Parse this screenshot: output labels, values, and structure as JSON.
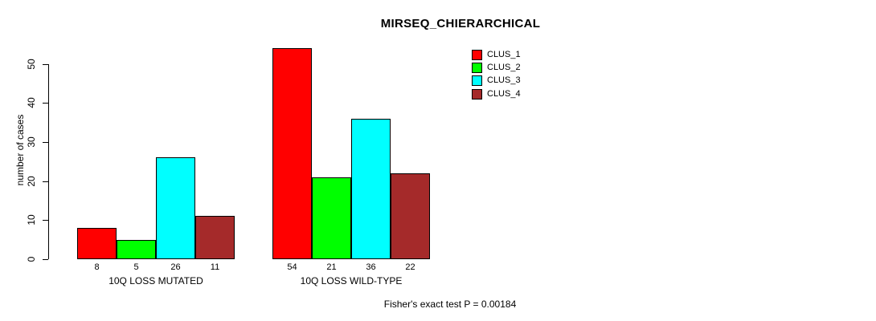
{
  "chart_data": {
    "type": "bar",
    "title": "MIRSEQ_CHIERARCHICAL",
    "xlabel": "",
    "ylabel": "number of cases",
    "categories": [
      "10Q LOSS MUTATED",
      "10Q LOSS WILD-TYPE"
    ],
    "series": [
      {
        "name": "CLUS_1",
        "color": "#FF0000",
        "values": [
          8,
          54
        ]
      },
      {
        "name": "CLUS_2",
        "color": "#00FF00",
        "values": [
          5,
          21
        ]
      },
      {
        "name": "CLUS_3",
        "color": "#00FFFF",
        "values": [
          26,
          36
        ]
      },
      {
        "name": "CLUS_4",
        "color": "#A52A2A",
        "values": [
          11,
          22
        ]
      }
    ],
    "bar_value_labels": [
      [
        8,
        5,
        26,
        11
      ],
      [
        54,
        21,
        36,
        22
      ]
    ],
    "yticks": [
      0,
      10,
      20,
      30,
      40,
      50
    ],
    "ylim": [
      0,
      57
    ],
    "grid": false,
    "legend_position": "top-right",
    "annotation": "Fisher's exact test P = 0.00184"
  },
  "colors": {
    "background": "#FFFFFF",
    "axis": "#000000",
    "text": "#000000"
  }
}
